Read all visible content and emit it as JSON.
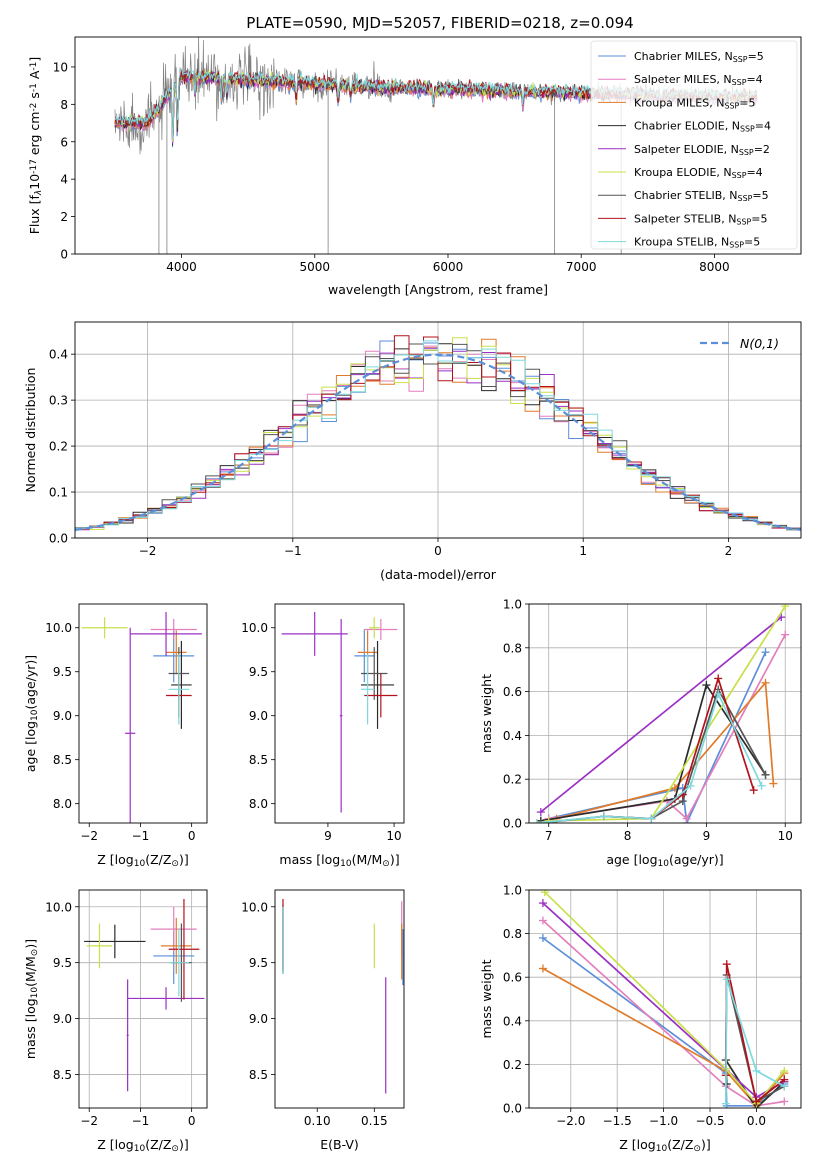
{
  "figure": {
    "title": "PLATE=0590, MJD=52057, FIBERID=0218, z=0.094"
  },
  "series_styles": [
    {
      "name": "Chabrier MILES, N$_{SSP}$=5",
      "color": "#5b8fd9"
    },
    {
      "name": "Salpeter MILES, N$_{SSP}$=4",
      "color": "#e37fbd"
    },
    {
      "name": "Kroupa MILES, N$_{SSP}$=5",
      "color": "#e07b2a"
    },
    {
      "name": "Chabrier ELODIE, N$_{SSP}$=4",
      "color": "#2b2b2b"
    },
    {
      "name": "Salpeter ELODIE, N$_{SSP}$=2",
      "color": "#9b30c4"
    },
    {
      "name": "Kroupa ELODIE, N$_{SSP}$=4",
      "color": "#c8e04a"
    },
    {
      "name": "Chabrier STELIB, N$_{SSP}$=5",
      "color": "#555555"
    },
    {
      "name": "Salpeter STELIB, N$_{SSP}$=5",
      "color": "#b3121c"
    },
    {
      "name": "Kroupa STELIB, N$_{SSP}$=5",
      "color": "#7fd9dd"
    }
  ],
  "chart_data": [
    {
      "id": "spectrum",
      "type": "line",
      "xlabel": "wavelength [Angstrom, rest frame]",
      "ylabel": "Flux [f$_\\lambda$10$^{-17}$ erg cm$^{-2}$ s$^{-1}$ A$^{-1}$]",
      "xlim": [
        3200,
        8650
      ],
      "ylim": [
        0,
        11.6
      ],
      "xticks": [
        4000,
        5000,
        6000,
        7000,
        8000
      ],
      "yticks": [
        0,
        2,
        4,
        6,
        8,
        10
      ],
      "legend": "upper right",
      "data_range": [
        3500,
        8320
      ],
      "grid": false
    },
    {
      "id": "residuals",
      "type": "line",
      "xlabel": "(data-model)/error",
      "ylabel": "Normed distribution",
      "xlim": [
        -2.5,
        2.5
      ],
      "ylim": [
        0,
        0.47
      ],
      "xticks": [
        -2,
        -1,
        0,
        1,
        2
      ],
      "yticks": [
        0.0,
        0.1,
        0.2,
        0.3,
        0.4
      ],
      "grid": true,
      "gaussian_label": "$\\mathcal{N}(0,1)$",
      "gaussian_color": "#5b8fd9",
      "bin_width": 0.1
    },
    {
      "id": "age_vs_Z",
      "type": "scatter",
      "xlabel": "Z [log$_{10}$(Z/Z$_\\odot$)]",
      "ylabel": "age  [log$_{10}$(age/yr)]",
      "xlim": [
        -2.2,
        0.3
      ],
      "ylim": [
        7.78,
        10.27
      ],
      "xticks": [
        -2,
        -1,
        0
      ],
      "yticks": [
        8.0,
        8.5,
        9.0,
        9.5,
        10.0
      ],
      "grid": false,
      "points": [
        {
          "s": 0,
          "x": -0.35,
          "y": 9.68,
          "dx": 0.4,
          "dy": 0.3
        },
        {
          "s": 1,
          "x": -0.35,
          "y": 9.98,
          "dx": 0.45,
          "dy": 0.12
        },
        {
          "s": 2,
          "x": -0.3,
          "y": 9.72,
          "dx": 0.2,
          "dy": 0.25
        },
        {
          "s": 3,
          "x": -0.2,
          "y": 9.35,
          "dx": 0.2,
          "dy": 0.5
        },
        {
          "s": 4,
          "x": -0.5,
          "y": 9.93,
          "dx": 0.7,
          "dy": 0.25
        },
        {
          "s": 5,
          "x": -1.7,
          "y": 10.0,
          "dx": 0.45,
          "dy": 0.12
        },
        {
          "s": 6,
          "x": -0.25,
          "y": 9.48,
          "dx": 0.2,
          "dy": 0.3
        },
        {
          "s": 7,
          "x": -0.25,
          "y": 9.23,
          "dx": 0.25,
          "dy": 0.25
        },
        {
          "s": 8,
          "x": -0.25,
          "y": 9.3,
          "dx": 0.2,
          "dy": 0.4
        },
        {
          "s": 4,
          "x": -1.2,
          "y": 8.8,
          "dx": 0.1,
          "dy": 1.2
        }
      ]
    },
    {
      "id": "age_vs_mass",
      "type": "scatter",
      "xlabel": "mass [log$_{10}$(M/M$_\\odot$)]",
      "ylabel": "",
      "xlim": [
        8.2,
        10.15
      ],
      "ylim": [
        7.78,
        10.27
      ],
      "xticks": [
        9,
        10
      ],
      "yticks": [
        8.0,
        8.5,
        9.0,
        9.5,
        10.0
      ],
      "grid": false,
      "points": [
        {
          "s": 0,
          "x": 9.55,
          "y": 9.68,
          "dx": 0.15,
          "dy": 0.3
        },
        {
          "s": 1,
          "x": 9.8,
          "y": 9.98,
          "dx": 0.25,
          "dy": 0.12
        },
        {
          "s": 2,
          "x": 9.6,
          "y": 9.72,
          "dx": 0.15,
          "dy": 0.25
        },
        {
          "s": 3,
          "x": 9.75,
          "y": 9.35,
          "dx": 0.25,
          "dy": 0.5
        },
        {
          "s": 4,
          "x": 8.8,
          "y": 9.93,
          "dx": 0.5,
          "dy": 0.25
        },
        {
          "s": 5,
          "x": 9.7,
          "y": 10.0,
          "dx": 0.08,
          "dy": 0.12
        },
        {
          "s": 6,
          "x": 9.7,
          "y": 9.48,
          "dx": 0.2,
          "dy": 0.3
        },
        {
          "s": 7,
          "x": 9.8,
          "y": 9.23,
          "dx": 0.25,
          "dy": 0.25
        },
        {
          "s": 8,
          "x": 9.6,
          "y": 9.3,
          "dx": 0.1,
          "dy": 0.4
        },
        {
          "s": 4,
          "x": 9.2,
          "y": 9.0,
          "dx": 0.02,
          "dy": 1.1
        }
      ]
    },
    {
      "id": "massweight_vs_age",
      "type": "line",
      "xlabel": "age  [log$_{10}$(age/yr)]",
      "ylabel": "mass weight",
      "xlim": [
        6.75,
        10.2
      ],
      "ylim": [
        0,
        1
      ],
      "xticks": [
        7,
        8,
        9,
        10
      ],
      "yticks": [
        0.0,
        0.2,
        0.4,
        0.6,
        0.8,
        1.0
      ],
      "grid": true,
      "series": [
        {
          "s": 0,
          "x": [
            6.9,
            7.0,
            8.7,
            8.75,
            9.75
          ],
          "y": [
            0.01,
            0.02,
            0.16,
            0.0,
            0.78
          ]
        },
        {
          "s": 1,
          "x": [
            6.9,
            7.0,
            8.5,
            8.75,
            10.0
          ],
          "y": [
            0.01,
            0.02,
            0.1,
            0.02,
            0.86
          ]
        },
        {
          "s": 2,
          "x": [
            6.9,
            7.1,
            8.6,
            9.75,
            9.85
          ],
          "y": [
            0.01,
            0.02,
            0.16,
            0.64,
            0.18
          ]
        },
        {
          "s": 3,
          "x": [
            6.9,
            8.6,
            9.0,
            9.75
          ],
          "y": [
            0.01,
            0.11,
            0.63,
            0.22
          ]
        },
        {
          "s": 4,
          "x": [
            6.9,
            9.95
          ],
          "y": [
            0.05,
            0.94
          ]
        },
        {
          "s": 5,
          "x": [
            6.85,
            7.0,
            8.3,
            10.0
          ],
          "y": [
            0.0,
            0.01,
            0.02,
            0.99
          ]
        },
        {
          "s": 6,
          "x": [
            6.9,
            7.7,
            8.3,
            8.7,
            9.15,
            9.75
          ],
          "y": [
            0.0,
            0.03,
            0.02,
            0.1,
            0.61,
            0.22
          ]
        },
        {
          "s": 7,
          "x": [
            7.7,
            8.3,
            8.7,
            9.15,
            9.6
          ],
          "y": [
            0.03,
            0.02,
            0.13,
            0.66,
            0.15
          ]
        },
        {
          "s": 8,
          "x": [
            6.85,
            7.7,
            8.3,
            8.8,
            9.15,
            9.7
          ],
          "y": [
            0.0,
            0.03,
            0.02,
            0.17,
            0.59,
            0.17
          ]
        }
      ]
    },
    {
      "id": "mass_vs_Z",
      "type": "scatter",
      "xlabel": "Z [log$_{10}$(Z/Z$_\\odot$)]",
      "ylabel": "mass [log$_{10}$(M/M$_\\odot$)]",
      "xlim": [
        -2.2,
        0.3
      ],
      "ylim": [
        8.2,
        10.15
      ],
      "xticks": [
        -2,
        -1,
        0
      ],
      "yticks": [
        8.5,
        9.0,
        9.5,
        10.0
      ],
      "grid": true,
      "points": [
        {
          "s": 0,
          "x": -0.35,
          "y": 9.56,
          "dx": 0.4,
          "dy": 0.25
        },
        {
          "s": 1,
          "x": -0.35,
          "y": 9.8,
          "dx": 0.45,
          "dy": 0.2
        },
        {
          "s": 2,
          "x": -0.3,
          "y": 9.65,
          "dx": 0.3,
          "dy": 0.25
        },
        {
          "s": 3,
          "x": -1.5,
          "y": 9.69,
          "dx": 0.6,
          "dy": 0.15
        },
        {
          "s": 4,
          "x": -0.5,
          "y": 9.18,
          "dx": 0.75,
          "dy": 0.1
        },
        {
          "s": 5,
          "x": -1.8,
          "y": 9.65,
          "dx": 0.25,
          "dy": 0.2
        },
        {
          "s": 6,
          "x": -0.2,
          "y": 9.5,
          "dx": 0.2,
          "dy": 0.35
        },
        {
          "s": 7,
          "x": -0.15,
          "y": 9.62,
          "dx": 0.3,
          "dy": 0.45
        },
        {
          "s": 8,
          "x": -0.25,
          "y": 9.5,
          "dx": 0.2,
          "dy": 0.3
        },
        {
          "s": 4,
          "x": -1.25,
          "y": 8.85,
          "dx": 0.02,
          "dy": 0.5
        }
      ]
    },
    {
      "id": "mass_vs_EBV",
      "type": "scatter",
      "xlabel": "E(B-V)",
      "ylabel": "",
      "xlim": [
        0.063,
        0.176
      ],
      "ylim": [
        8.2,
        10.15
      ],
      "xticks": [
        0.1,
        0.15
      ],
      "yticks": [
        8.5,
        9.0,
        9.5,
        10.0
      ],
      "grid": false,
      "points": [
        {
          "s": 0,
          "x": 0.175,
          "y": 9.55,
          "dx": 0.0,
          "dy": 0.25
        },
        {
          "s": 1,
          "x": 0.174,
          "y": 9.8,
          "dx": 0.0,
          "dy": 0.25
        },
        {
          "s": 2,
          "x": 0.174,
          "y": 9.6,
          "dx": 0.0,
          "dy": 0.25
        },
        {
          "s": 3,
          "x": 0.07,
          "y": 9.7,
          "dx": 0.0,
          "dy": 0.3
        },
        {
          "s": 4,
          "x": 0.16,
          "y": 8.85,
          "dx": 0.0,
          "dy": 0.52
        },
        {
          "s": 5,
          "x": 0.15,
          "y": 9.65,
          "dx": 0.0,
          "dy": 0.2
        },
        {
          "s": 6,
          "x": 0.07,
          "y": 9.72,
          "dx": 0.0,
          "dy": 0.3
        },
        {
          "s": 7,
          "x": 0.07,
          "y": 9.75,
          "dx": 0.0,
          "dy": 0.32
        },
        {
          "s": 8,
          "x": 0.07,
          "y": 9.7,
          "dx": 0.0,
          "dy": 0.3
        }
      ]
    },
    {
      "id": "massweight_vs_Z",
      "type": "line",
      "xlabel": "Z [log$_{10}$(Z/Z$_\\odot$)]",
      "ylabel": "mass weight",
      "xlim": [
        -2.45,
        0.48
      ],
      "ylim": [
        0,
        1
      ],
      "xticks": [
        -2.0,
        -1.5,
        -1.0,
        -0.5,
        0.0
      ],
      "yticks": [
        0.0,
        0.2,
        0.4,
        0.6,
        0.8,
        1.0
      ],
      "grid": true,
      "series": [
        {
          "s": 0,
          "x": [
            -2.3,
            -0.33,
            -0.32,
            0.0,
            0.3
          ],
          "y": [
            0.78,
            0.16,
            0.01,
            0.01,
            0.11
          ]
        },
        {
          "s": 1,
          "x": [
            -2.3,
            -0.33,
            0.0,
            0.3
          ],
          "y": [
            0.86,
            0.1,
            0.01,
            0.03
          ]
        },
        {
          "s": 2,
          "x": [
            -2.3,
            -0.33,
            0.0,
            0.3
          ],
          "y": [
            0.64,
            0.17,
            0.01,
            0.16
          ]
        },
        {
          "s": 3,
          "x": [
            -0.32,
            -0.33,
            0.0,
            0.3
          ],
          "y": [
            0.11,
            0.22,
            0.0,
            0.12
          ]
        },
        {
          "s": 4,
          "x": [
            -2.3,
            0.0,
            0.3
          ],
          "y": [
            0.94,
            0.05,
            0.12
          ]
        },
        {
          "s": 5,
          "x": [
            -2.28,
            -0.33,
            0.0,
            0.3
          ],
          "y": [
            0.99,
            0.18,
            0.02,
            0.17
          ]
        },
        {
          "s": 6,
          "x": [
            -0.33,
            -0.32,
            0.0,
            0.3
          ],
          "y": [
            0.22,
            0.61,
            0.03,
            0.1
          ]
        },
        {
          "s": 7,
          "x": [
            -0.33,
            -0.32,
            0.0,
            0.3
          ],
          "y": [
            0.15,
            0.66,
            0.03,
            0.13
          ]
        },
        {
          "s": 8,
          "x": [
            -0.33,
            -0.32,
            0.0,
            0.3
          ],
          "y": [
            0.02,
            0.59,
            0.17,
            0.1
          ]
        }
      ]
    }
  ]
}
